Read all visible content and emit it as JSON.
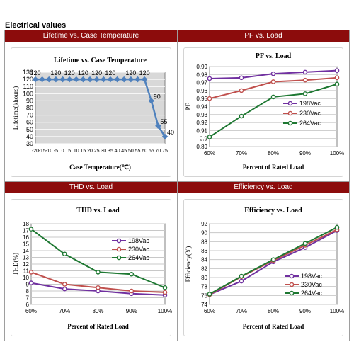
{
  "page": {
    "title": "Electrical values"
  },
  "panels": [
    {
      "header": "Lifetime vs. Case Temperature"
    },
    {
      "header": "PF vs. Load"
    },
    {
      "header": "THD vs. Load"
    },
    {
      "header": "Efficiency vs. Load"
    }
  ],
  "chart_data": [
    {
      "type": "line",
      "title": "Lifetime vs. Case Temperature",
      "xlabel": "Case Temperature(℃)",
      "ylabel": "Lifetime(khours)",
      "x_tick_labels": [
        "-20",
        "-15",
        "-10",
        "-5",
        "0",
        "5",
        "10",
        "15",
        "20",
        "25",
        "30",
        "35",
        "40",
        "45",
        "50",
        "55",
        "60",
        "65",
        "70",
        "75"
      ],
      "x_tick_values": [
        -20,
        -15,
        -10,
        -5,
        0,
        5,
        10,
        15,
        20,
        25,
        30,
        35,
        40,
        45,
        50,
        55,
        60,
        65,
        70,
        75
      ],
      "xlim": [
        -20,
        75
      ],
      "ylim": [
        30,
        130
      ],
      "y_ticks": [
        30,
        40,
        50,
        60,
        70,
        80,
        90,
        100,
        110,
        120,
        130
      ],
      "grid": true,
      "legend": "none",
      "series": [
        {
          "color": "#4f81bd",
          "x": [
            -20,
            -15,
            -10,
            -5,
            0,
            5,
            10,
            15,
            20,
            25,
            30,
            35,
            40,
            45,
            50,
            55,
            60,
            65,
            70,
            75
          ],
          "values": [
            120,
            120,
            120,
            120,
            120,
            120,
            120,
            120,
            120,
            120,
            120,
            120,
            120,
            120,
            120,
            120,
            120,
            90,
            55,
            40
          ],
          "labels": [
            "120",
            "",
            "",
            "120",
            "",
            "120",
            "",
            "120",
            "",
            "120",
            "",
            "120",
            "",
            "",
            "120",
            "",
            "120",
            "90",
            "55",
            "40"
          ]
        }
      ]
    },
    {
      "type": "line",
      "title": "PF vs. Load",
      "xlabel": "Percent of Rated Load",
      "ylabel": "PF",
      "categories": [
        "60%",
        "70%",
        "80%",
        "90%",
        "100%"
      ],
      "ylim": [
        0.89,
        0.99
      ],
      "y_ticks": [
        0.89,
        0.9,
        0.91,
        0.92,
        0.93,
        0.94,
        0.95,
        0.96,
        0.97,
        0.98,
        0.99
      ],
      "y_tick_labels": [
        "0.89",
        "0.9",
        "0.91",
        "0.92",
        "0.93",
        "0.94",
        "0.95",
        "0.96",
        "0.97",
        "0.98",
        "0.99"
      ],
      "grid": true,
      "legend": "right",
      "series": [
        {
          "name": "198Vac",
          "color": "#7030a0",
          "values": [
            0.975,
            0.976,
            0.981,
            0.983,
            0.985
          ]
        },
        {
          "name": "230Vac",
          "color": "#c0504d",
          "values": [
            0.95,
            0.96,
            0.971,
            0.973,
            0.976
          ]
        },
        {
          "name": "264Vac",
          "color": "#1e7832",
          "values": [
            0.902,
            0.928,
            0.952,
            0.956,
            0.968
          ]
        }
      ]
    },
    {
      "type": "line",
      "title": "THD vs. Load",
      "xlabel": "Percent of Rated Load",
      "ylabel": "THD(%)",
      "categories": [
        "60%",
        "70%",
        "80%",
        "90%",
        "100%"
      ],
      "ylim": [
        6,
        18
      ],
      "y_ticks": [
        6,
        7,
        8,
        9,
        10,
        11,
        12,
        13,
        14,
        15,
        16,
        17,
        18
      ],
      "y_tick_labels": [
        "6",
        "7",
        "8",
        "9",
        "10",
        "11",
        "12",
        "13",
        "14",
        "15",
        "16",
        "17",
        "18"
      ],
      "grid": true,
      "legend": "top-right",
      "series": [
        {
          "name": "198Vac",
          "color": "#7030a0",
          "values": [
            9.2,
            8.3,
            8.0,
            7.6,
            7.4
          ]
        },
        {
          "name": "230Vac",
          "color": "#c0504d",
          "values": [
            10.8,
            9.0,
            8.5,
            8.0,
            7.8
          ]
        },
        {
          "name": "264Vac",
          "color": "#1e7832",
          "values": [
            17.2,
            13.5,
            10.8,
            10.5,
            8.5
          ]
        }
      ]
    },
    {
      "type": "line",
      "title": "Efficiency vs. Load",
      "xlabel": "Percent of Rated Load",
      "ylabel": "Efficiency(%)",
      "categories": [
        "60%",
        "70%",
        "80%",
        "90%",
        "100%"
      ],
      "ylim": [
        74,
        92
      ],
      "y_ticks": [
        74,
        76,
        78,
        80,
        82,
        84,
        86,
        88,
        90,
        92
      ],
      "y_tick_labels": [
        "74",
        "76",
        "78",
        "80",
        "82",
        "84",
        "86",
        "88",
        "90",
        "92"
      ],
      "grid": true,
      "legend": "bottom-right",
      "series": [
        {
          "name": "198Vac",
          "color": "#7030a0",
          "values": [
            76.2,
            79.2,
            83.5,
            86.7,
            90.5
          ]
        },
        {
          "name": "230Vac",
          "color": "#c0504d",
          "values": [
            76.2,
            80.2,
            83.8,
            87.2,
            90.7
          ]
        },
        {
          "name": "264Vac",
          "color": "#1e7832",
          "values": [
            76.3,
            80.3,
            84.0,
            87.6,
            91.2
          ]
        }
      ]
    }
  ]
}
